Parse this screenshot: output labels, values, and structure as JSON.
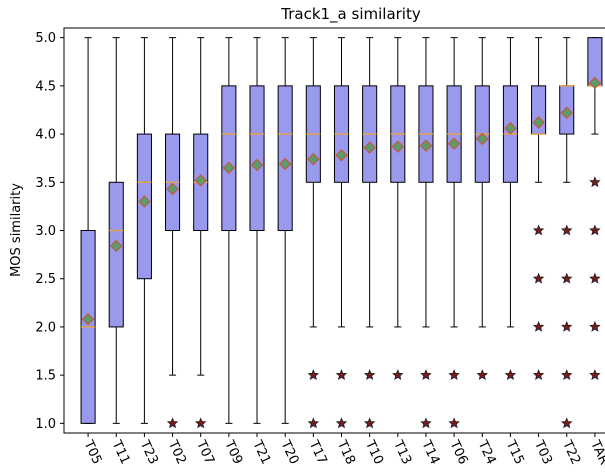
{
  "chart_data": {
    "type": "box",
    "title": "Track1_a similarity",
    "xlabel": "",
    "ylabel": "MOS similarity",
    "ylim": [
      0.9,
      5.1
    ],
    "yticks": [
      1.0,
      1.5,
      2.0,
      2.5,
      3.0,
      3.5,
      4.0,
      4.5,
      5.0
    ],
    "ytick_labels": [
      "1.0",
      "1.5",
      "2.0",
      "2.5",
      "3.0",
      "3.5",
      "4.0",
      "4.5",
      "5.0"
    ],
    "grid": false,
    "colors": {
      "box_fill": "#9999ee",
      "box_edge": "#000000",
      "median": "#f0a030",
      "mean_marker": "#5c9c6a",
      "mean_edge": "#d05030",
      "flier_fill": "#7a1a1a",
      "flier_edge": "#222222"
    },
    "categories": [
      "T05",
      "T11",
      "T23",
      "T02",
      "T07",
      "T09",
      "T21",
      "T20",
      "T17",
      "T18",
      "T10",
      "T13",
      "T14",
      "T06",
      "T24",
      "T15",
      "T03",
      "T22",
      "TAR"
    ],
    "boxes": [
      {
        "name": "T05",
        "whislo": 1.0,
        "q1": 1.0,
        "med": 2.0,
        "q3": 3.0,
        "whishi": 5.0,
        "mean": 2.08,
        "fliers": []
      },
      {
        "name": "T11",
        "whislo": 1.0,
        "q1": 2.0,
        "med": 3.0,
        "q3": 3.5,
        "whishi": 5.0,
        "mean": 2.84,
        "fliers": []
      },
      {
        "name": "T23",
        "whislo": 1.0,
        "q1": 2.5,
        "med": 3.5,
        "q3": 4.0,
        "whishi": 5.0,
        "mean": 3.3,
        "fliers": []
      },
      {
        "name": "T02",
        "whislo": 1.5,
        "q1": 3.0,
        "med": 3.5,
        "q3": 4.0,
        "whishi": 5.0,
        "mean": 3.43,
        "fliers": [
          1.0
        ]
      },
      {
        "name": "T07",
        "whislo": 1.5,
        "q1": 3.0,
        "med": 3.5,
        "q3": 4.0,
        "whishi": 5.0,
        "mean": 3.52,
        "fliers": [
          1.0
        ]
      },
      {
        "name": "T09",
        "whislo": 1.0,
        "q1": 3.0,
        "med": 4.0,
        "q3": 4.5,
        "whishi": 5.0,
        "mean": 3.65,
        "fliers": []
      },
      {
        "name": "T21",
        "whislo": 1.0,
        "q1": 3.0,
        "med": 4.0,
        "q3": 4.5,
        "whishi": 5.0,
        "mean": 3.68,
        "fliers": []
      },
      {
        "name": "T20",
        "whislo": 1.0,
        "q1": 3.0,
        "med": 4.0,
        "q3": 4.5,
        "whishi": 5.0,
        "mean": 3.69,
        "fliers": []
      },
      {
        "name": "T17",
        "whislo": 2.0,
        "q1": 3.5,
        "med": 4.0,
        "q3": 4.5,
        "whishi": 5.0,
        "mean": 3.74,
        "fliers": [
          1.5,
          1.0
        ]
      },
      {
        "name": "T18",
        "whislo": 2.0,
        "q1": 3.5,
        "med": 4.0,
        "q3": 4.5,
        "whishi": 5.0,
        "mean": 3.78,
        "fliers": [
          1.5,
          1.0
        ]
      },
      {
        "name": "T10",
        "whislo": 2.0,
        "q1": 3.5,
        "med": 4.0,
        "q3": 4.5,
        "whishi": 5.0,
        "mean": 3.86,
        "fliers": [
          1.5,
          1.0
        ]
      },
      {
        "name": "T13",
        "whislo": 2.0,
        "q1": 3.5,
        "med": 4.0,
        "q3": 4.5,
        "whishi": 5.0,
        "mean": 3.87,
        "fliers": [
          1.5
        ]
      },
      {
        "name": "T14",
        "whislo": 2.0,
        "q1": 3.5,
        "med": 4.0,
        "q3": 4.5,
        "whishi": 5.0,
        "mean": 3.88,
        "fliers": [
          1.5,
          1.0
        ]
      },
      {
        "name": "T06",
        "whislo": 2.0,
        "q1": 3.5,
        "med": 4.0,
        "q3": 4.5,
        "whishi": 5.0,
        "mean": 3.9,
        "fliers": [
          1.5,
          1.0
        ]
      },
      {
        "name": "T24",
        "whislo": 2.0,
        "q1": 3.5,
        "med": 4.0,
        "q3": 4.5,
        "whishi": 5.0,
        "mean": 3.95,
        "fliers": [
          1.5
        ]
      },
      {
        "name": "T15",
        "whislo": 2.0,
        "q1": 3.5,
        "med": 4.0,
        "q3": 4.5,
        "whishi": 5.0,
        "mean": 4.06,
        "fliers": [
          1.5
        ]
      },
      {
        "name": "T03",
        "whislo": 3.5,
        "q1": 4.0,
        "med": 4.0,
        "q3": 4.5,
        "whishi": 5.0,
        "mean": 4.12,
        "fliers": [
          3.0,
          2.5,
          2.0,
          1.5
        ]
      },
      {
        "name": "T22",
        "whislo": 3.5,
        "q1": 4.0,
        "med": 4.5,
        "q3": 4.5,
        "whishi": 5.0,
        "mean": 4.22,
        "fliers": [
          3.0,
          2.5,
          2.0,
          1.5,
          1.0
        ]
      },
      {
        "name": "TAR",
        "whislo": 4.0,
        "q1": 4.5,
        "med": 4.5,
        "q3": 5.0,
        "whishi": 5.0,
        "mean": 4.53,
        "fliers": [
          3.5,
          3.0,
          2.5,
          2.0,
          1.5
        ]
      }
    ]
  }
}
